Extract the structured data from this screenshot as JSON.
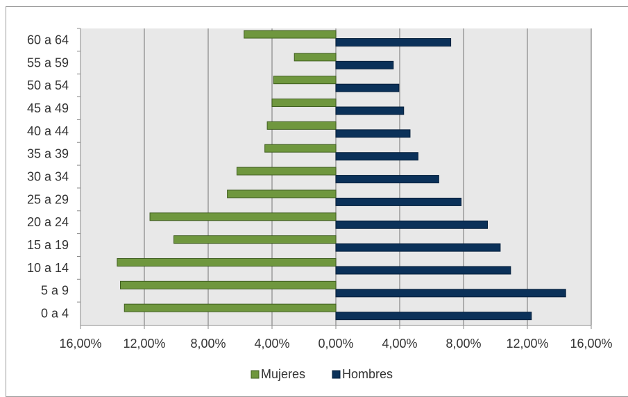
{
  "chart_data": {
    "type": "bar",
    "orientation": "horizontal",
    "layout": "population-pyramid",
    "categories": [
      "0 a 4",
      "5 a 9",
      "10 a 14",
      "15 a 19",
      "20 a 24",
      "25 a 29",
      "30 a 34",
      "35 a 39",
      "40 a 44",
      "45 a 49",
      "50 a 54",
      "55 a 59",
      "60 a 64"
    ],
    "series": [
      {
        "name": "Mujeres",
        "color": "#6f973e",
        "side": "left",
        "values": [
          13.25,
          13.5,
          13.7,
          10.15,
          11.65,
          6.8,
          6.2,
          4.45,
          4.3,
          4.0,
          3.9,
          2.6,
          5.75
        ]
      },
      {
        "name": "Hombres",
        "color": "#0b3159",
        "side": "right",
        "values": [
          12.25,
          14.4,
          10.95,
          10.3,
          9.5,
          7.85,
          6.45,
          5.15,
          4.65,
          4.25,
          3.95,
          3.6,
          7.2
        ]
      }
    ],
    "xlim": [
      -16,
      16
    ],
    "xticks": [
      {
        "value": -16,
        "label": "16,00%"
      },
      {
        "value": -12,
        "label": "12,00%"
      },
      {
        "value": -8,
        "label": "8,00%"
      },
      {
        "value": -4,
        "label": "4,00%"
      },
      {
        "value": 0,
        "label": "0,00%"
      },
      {
        "value": 4,
        "label": "4,00%"
      },
      {
        "value": 8,
        "label": "8,00%"
      },
      {
        "value": 12,
        "label": "12,00%"
      },
      {
        "value": 16,
        "label": "16,00%"
      }
    ],
    "grid": true,
    "legend": "bottom",
    "plot_background": "#e8e8e8",
    "gridline_color": "#999999"
  }
}
